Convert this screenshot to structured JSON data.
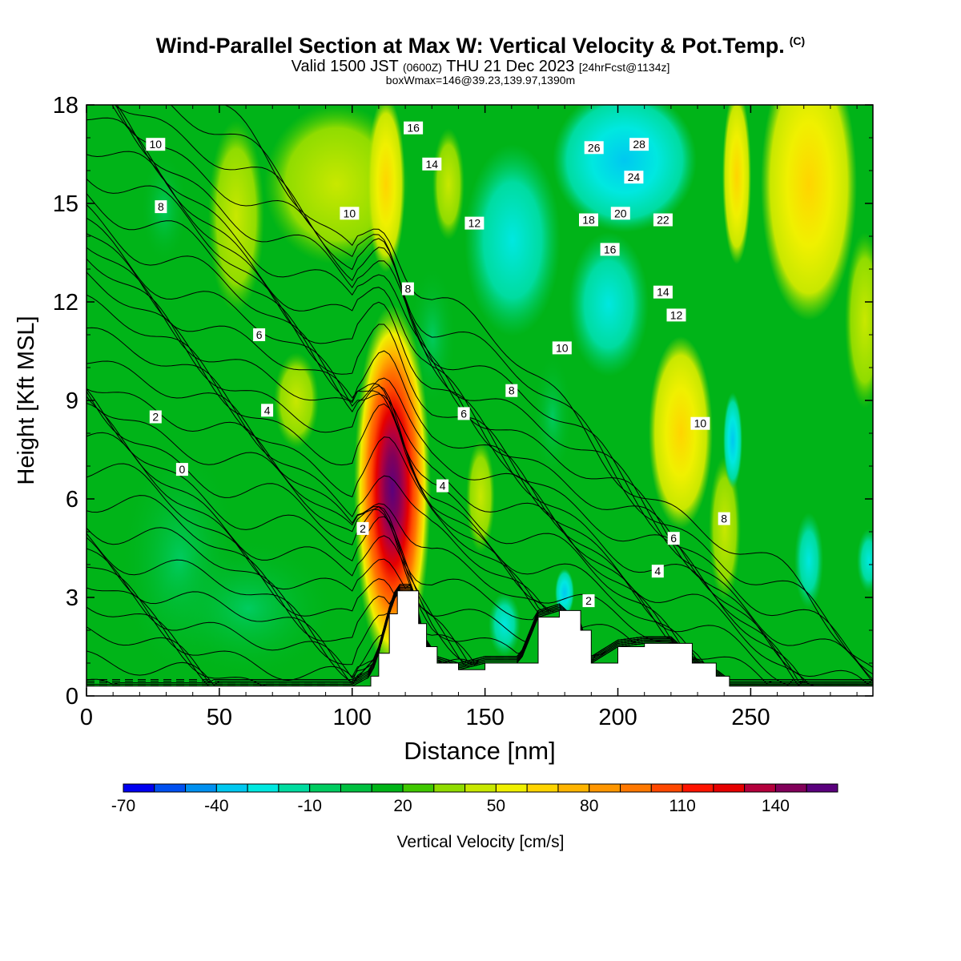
{
  "header": {
    "title": "Wind-Parallel Section at Max W: Vertical Velocity & Pot.Temp.",
    "copyright": "(C)",
    "valid_prefix": "Valid 1500 JST",
    "valid_utc": "(0600Z)",
    "valid_date": "THU 21 Dec 2023",
    "forecast": "[24hrFcst@1134z]",
    "box_info": "boxWmax=146@39.23,139.97,1390m"
  },
  "chart_data": {
    "type": "heatmap",
    "xlabel": "Distance [nm]",
    "ylabel": "Height [Kft MSL]",
    "xlim": [
      0,
      296
    ],
    "ylim": [
      0,
      18
    ],
    "x_ticks": [
      "0",
      "50",
      "100",
      "150",
      "200",
      "250"
    ],
    "y_ticks": [
      "0",
      "3",
      "6",
      "9",
      "12",
      "15",
      "18"
    ],
    "colorbar": {
      "label": "Vertical Velocity [cm/s]",
      "tick_labels": [
        "-70",
        "-40",
        "-10",
        "20",
        "50",
        "80",
        "110",
        "140"
      ],
      "colors": [
        "#0000f0",
        "#0050f0",
        "#0090f0",
        "#00c8f0",
        "#00e8e0",
        "#00dca0",
        "#00cc60",
        "#00c040",
        "#00b418",
        "#40c800",
        "#90dc00",
        "#c8e800",
        "#f0f000",
        "#ffd400",
        "#ffb400",
        "#ff9600",
        "#ff7800",
        "#ff4800",
        "#ff1400",
        "#e60000",
        "#b4003c",
        "#82005a",
        "#5a007d"
      ]
    },
    "max_updraft": {
      "x": 114,
      "y_kft": 7,
      "value_cm_s": 146
    },
    "terrain_kft": [
      [
        0,
        0.3
      ],
      [
        100,
        0.3
      ],
      [
        107,
        0.6
      ],
      [
        110,
        1.3
      ],
      [
        114,
        2.5
      ],
      [
        117,
        3.2
      ],
      [
        123,
        3.2
      ],
      [
        125,
        2.2
      ],
      [
        128,
        1.5
      ],
      [
        132,
        1.0
      ],
      [
        140,
        0.8
      ],
      [
        150,
        1.0
      ],
      [
        163,
        1.0
      ],
      [
        170,
        2.4
      ],
      [
        178,
        2.6
      ],
      [
        186,
        2.0
      ],
      [
        190,
        1.0
      ],
      [
        200,
        1.5
      ],
      [
        210,
        1.6
      ],
      [
        220,
        1.6
      ],
      [
        228,
        1.0
      ],
      [
        237,
        0.6
      ],
      [
        242,
        0.3
      ],
      [
        296,
        0.3
      ]
    ],
    "theta_contour_labels": [
      {
        "text": "10",
        "x": 26,
        "y": 16.8
      },
      {
        "text": "8",
        "x": 28,
        "y": 14.9
      },
      {
        "text": "6",
        "x": 65,
        "y": 11.0
      },
      {
        "text": "4",
        "x": 68,
        "y": 8.7
      },
      {
        "text": "2",
        "x": 26,
        "y": 8.5
      },
      {
        "text": "0",
        "x": 36,
        "y": 6.9
      },
      {
        "text": "10",
        "x": 99,
        "y": 14.7
      },
      {
        "text": "16",
        "x": 123,
        "y": 17.3
      },
      {
        "text": "14",
        "x": 130,
        "y": 16.2
      },
      {
        "text": "12",
        "x": 146,
        "y": 14.4
      },
      {
        "text": "8",
        "x": 121,
        "y": 12.4
      },
      {
        "text": "2",
        "x": 104,
        "y": 5.1
      },
      {
        "text": "4",
        "x": 134,
        "y": 6.4
      },
      {
        "text": "6",
        "x": 142,
        "y": 8.6
      },
      {
        "text": "8",
        "x": 160,
        "y": 9.3
      },
      {
        "text": "10",
        "x": 179,
        "y": 10.6
      },
      {
        "text": "26",
        "x": 191,
        "y": 16.7
      },
      {
        "text": "28",
        "x": 208,
        "y": 16.8
      },
      {
        "text": "24",
        "x": 206,
        "y": 15.8
      },
      {
        "text": "18",
        "x": 189,
        "y": 14.5
      },
      {
        "text": "20",
        "x": 201,
        "y": 14.7
      },
      {
        "text": "22",
        "x": 217,
        "y": 14.5
      },
      {
        "text": "16",
        "x": 197,
        "y": 13.6
      },
      {
        "text": "14",
        "x": 217,
        "y": 12.3
      },
      {
        "text": "12",
        "x": 222,
        "y": 11.6
      },
      {
        "text": "10",
        "x": 231,
        "y": 8.3
      },
      {
        "text": "8",
        "x": 240,
        "y": 5.4
      },
      {
        "text": "6",
        "x": 221,
        "y": 4.8
      },
      {
        "text": "4",
        "x": 215,
        "y": 3.8
      },
      {
        "text": "2",
        "x": 189,
        "y": 2.9
      }
    ]
  }
}
